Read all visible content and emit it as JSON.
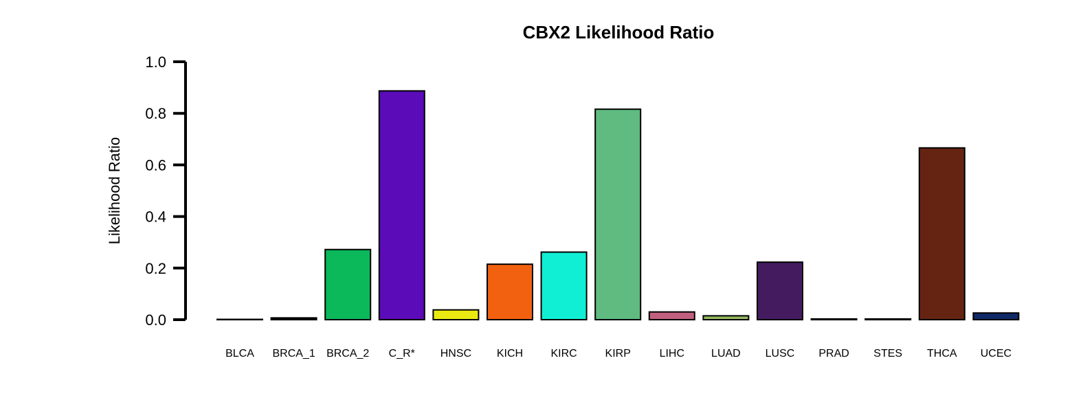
{
  "chart_data": {
    "type": "bar",
    "title": "CBX2 Likelihood Ratio",
    "xlabel": "",
    "ylabel": "Likelihood Ratio",
    "ylim": [
      0,
      1.0
    ],
    "yticks": [
      "0.0",
      "0.2",
      "0.4",
      "0.6",
      "0.8",
      "1.0"
    ],
    "grid": false,
    "legend": "none",
    "categories": [
      "BLCA",
      "BRCA_1",
      "BRCA_2",
      "C_R*",
      "HNSC",
      "KICH",
      "KIRC",
      "KIRP",
      "LIHC",
      "LUAD",
      "LUSC",
      "PRAD",
      "STES",
      "THCA",
      "UCEC"
    ],
    "values": [
      0.001,
      0.007,
      0.272,
      0.887,
      0.038,
      0.215,
      0.262,
      0.816,
      0.03,
      0.015,
      0.223,
      0.003,
      0.003,
      0.666,
      0.026
    ],
    "colors": [
      "#000000",
      "#000000",
      "#0BB85A",
      "#5B0BB8",
      "#EAEA12",
      "#F26110",
      "#10EFD3",
      "#5FBB80",
      "#C0607E",
      "#96BA60",
      "#451B60",
      "#000000",
      "#000000",
      "#652412",
      "#0F2A66"
    ]
  }
}
